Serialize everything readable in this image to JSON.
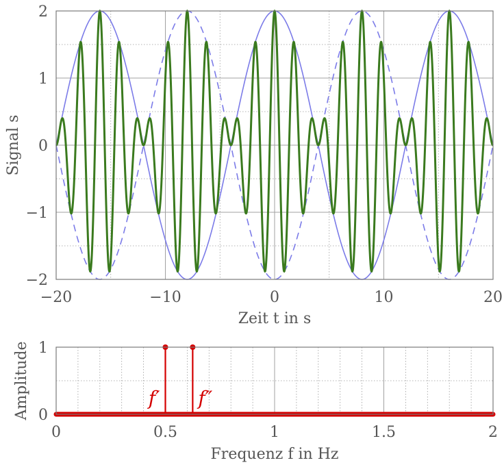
{
  "chart_data": [
    {
      "type": "line",
      "xlabel": "Zeit t in s",
      "ylabel": "Signal s",
      "xlim": [
        -20,
        20
      ],
      "ylim": [
        -2,
        2
      ],
      "x_ticks": [
        "−20",
        "−10",
        "0",
        "10",
        "20"
      ],
      "y_ticks": [
        "−2",
        "−1",
        "0",
        "1",
        "2"
      ],
      "grid": true,
      "colors": {
        "signal": "#3a7a1e",
        "envelope": "#7b7be8"
      },
      "series": [
        {
          "style": "solid-thick",
          "formula": "cos(2*pi*0.5*t) + cos(2*pi*0.625*t)",
          "peak": 2
        },
        {
          "style": "solid-thin",
          "formula": "2*cos(2*pi*0.0625*t)",
          "amplitude": 2
        },
        {
          "style": "dashed-thin",
          "formula": "-2*cos(2*pi*0.0625*t)",
          "amplitude": 2
        }
      ]
    },
    {
      "type": "stem",
      "xlabel": "Frequenz f in Hz",
      "ylabel": "Amplitude",
      "xlim": [
        0,
        2
      ],
      "ylim": [
        0,
        1
      ],
      "x_ticks": [
        "0",
        "0.5",
        "1",
        "1.5",
        "2"
      ],
      "y_ticks": [
        "0",
        "1"
      ],
      "grid": true,
      "color": "#d40000",
      "stems": [
        {
          "x": 0.5,
          "y": 1,
          "label": "f′"
        },
        {
          "x": 0.625,
          "y": 1,
          "label": "f″"
        }
      ],
      "baseline": 0
    }
  ]
}
